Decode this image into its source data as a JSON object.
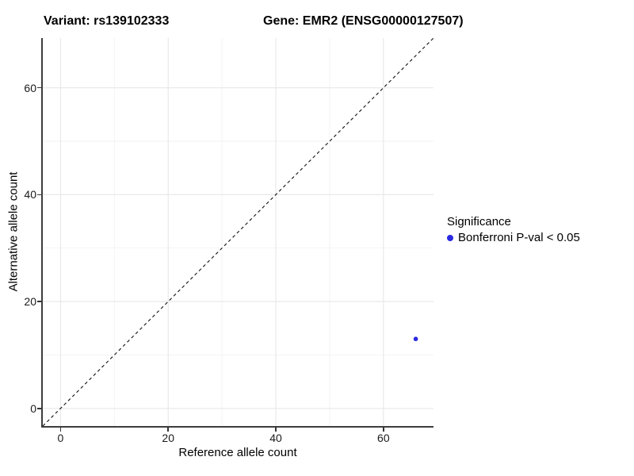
{
  "titles": {
    "variant": "Variant: rs139102333",
    "gene": "Gene: EMR2 (ENSG00000127507)"
  },
  "axes": {
    "x_label": "Reference allele count",
    "y_label": "Alternative allele count"
  },
  "legend": {
    "title": "Significance",
    "items": [
      {
        "label": "Bonferroni P-val < 0.05",
        "color": "#2a2ae0"
      }
    ]
  },
  "colors": {
    "point": "#2a2ae0",
    "reference_line": "#111111",
    "grid_major": "#e7e7e7",
    "grid_minor": "#f2f2f2",
    "axis_line": "#3d3d3d",
    "text": "#000000"
  },
  "chart_data": {
    "type": "scatter",
    "title": "Variant: rs139102333 — Gene: EMR2 (ENSG00000127507)",
    "xlabel": "Reference allele count",
    "ylabel": "Alternative allele count",
    "xlim": [
      -3.3,
      69.3
    ],
    "ylim": [
      -3.3,
      69.3
    ],
    "x_ticks": [
      0,
      20,
      40,
      60
    ],
    "y_ticks": [
      0,
      20,
      40,
      60
    ],
    "x_minor_ticks": [
      10,
      30,
      50
    ],
    "y_minor_ticks": [
      10,
      30,
      50
    ],
    "grid": "major+minor",
    "legend_position": "right",
    "reference_line": {
      "slope": 1,
      "intercept": 0,
      "style": "dashed",
      "color": "#111111"
    },
    "series": [
      {
        "name": "Bonferroni P-val < 0.05",
        "color": "#2a2ae0",
        "points": [
          {
            "x": 66,
            "y": 13
          }
        ],
        "point_radius_px": 2.8
      }
    ]
  }
}
